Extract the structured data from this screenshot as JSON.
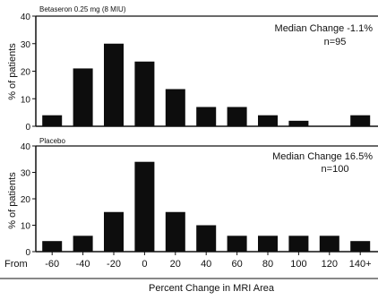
{
  "chart_data": [
    {
      "type": "bar",
      "title": "Betaseron 0.25 mg (8 MIU)",
      "ylabel": "% of patients",
      "ylim": [
        0,
        40
      ],
      "yticks": [
        0,
        10,
        20,
        30,
        40
      ],
      "annotation_line1": "Median Change -1.1%",
      "annotation_line2": "n=95",
      "bin_centers": [
        -60,
        -40,
        -20,
        0,
        20,
        40,
        60,
        80,
        100,
        120,
        140
      ],
      "values": [
        4,
        21,
        30,
        23.5,
        13.5,
        7,
        7,
        4,
        2,
        0,
        4
      ]
    },
    {
      "type": "bar",
      "title": "Placebo",
      "ylabel": "% of patients",
      "ylim": [
        0,
        40
      ],
      "yticks": [
        0,
        10,
        20,
        30,
        40
      ],
      "annotation_line1": "Median Change 16.5%",
      "annotation_line2": "n=100",
      "bin_centers": [
        -60,
        -40,
        -20,
        0,
        20,
        40,
        60,
        80,
        100,
        120,
        140
      ],
      "values": [
        4,
        6,
        15,
        34,
        15,
        10,
        6,
        6,
        6,
        6,
        4
      ]
    }
  ],
  "x_axis": {
    "prefix": "From",
    "tick_labels": [
      "-60",
      "-40",
      "-20",
      "0",
      "20",
      "40",
      "60",
      "80",
      "100",
      "120",
      "140+"
    ],
    "label": "Percent Change in MRI Area"
  },
  "colors": {
    "bar": "#0d0d0d",
    "axis": "#111111"
  }
}
